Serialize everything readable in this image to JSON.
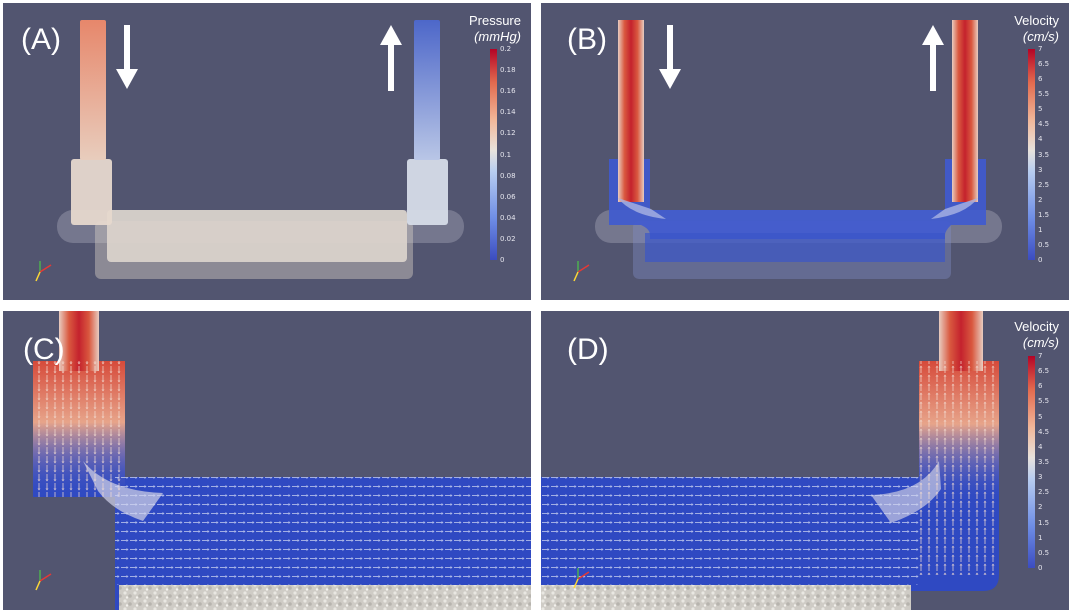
{
  "panels": {
    "a": {
      "label": "(A)",
      "colorbar": {
        "title": "Pressure",
        "unit": "(mmHg)",
        "ticks": [
          "0.2",
          "0.18",
          "0.16",
          "0.14",
          "0.12",
          "0.1",
          "0.08",
          "0.06",
          "0.04",
          "0.02",
          "0"
        ]
      }
    },
    "b": {
      "label": "(B)",
      "colorbar": {
        "title": "Velocity",
        "unit": "(cm/s)",
        "ticks": [
          "7",
          "6.5",
          "6",
          "5.5",
          "5",
          "4.5",
          "4",
          "3.5",
          "3",
          "2.5",
          "2",
          "1.5",
          "1",
          "0.5",
          "0"
        ]
      }
    },
    "c": {
      "label": "(C)"
    },
    "d": {
      "label": "(D)",
      "colorbar": {
        "title": "Velocity",
        "unit": "(cm/s)",
        "ticks": [
          "7",
          "6.5",
          "6",
          "5.5",
          "5",
          "4.5",
          "4",
          "3.5",
          "3",
          "2.5",
          "2",
          "1.5",
          "1",
          "0.5",
          "0"
        ]
      }
    }
  },
  "colors": {
    "background": "#525570",
    "low": "#3b4cc0",
    "mid": "#e8e2dc",
    "high": "#b40426"
  },
  "icons": [
    "arrow-down-icon",
    "arrow-up-icon",
    "axes-triad-icon"
  ]
}
